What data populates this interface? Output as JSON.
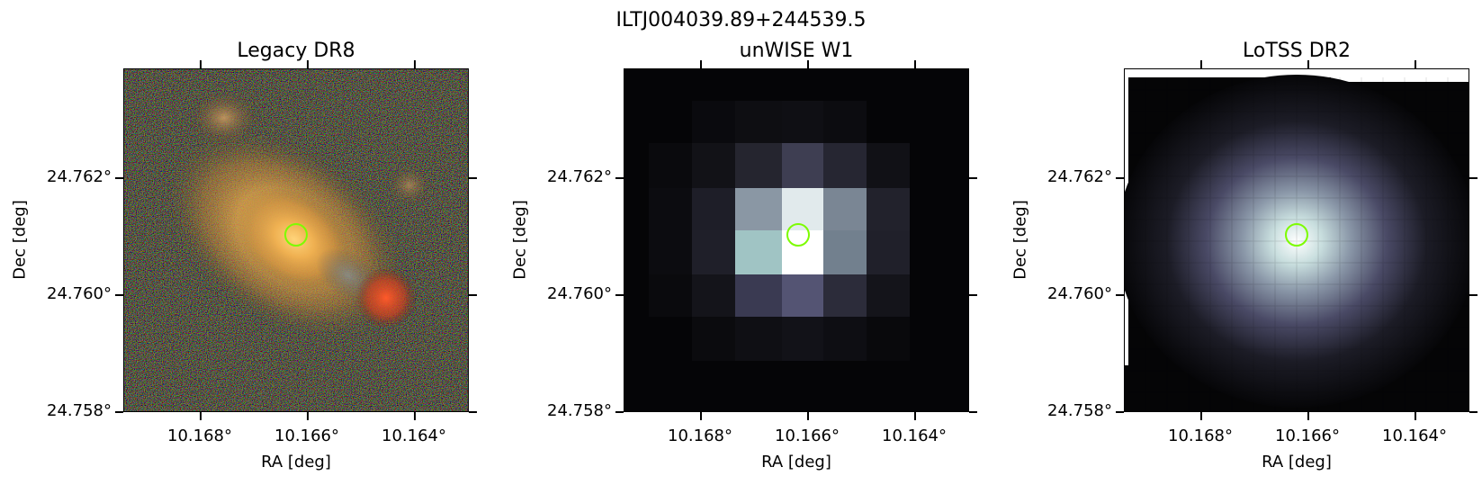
{
  "title": "ILTJ004039.89+244539.5",
  "colors": {
    "marker": "#7cfc00"
  },
  "panels": [
    {
      "title": "Legacy DR8",
      "xlabel": "RA [deg]",
      "ylabel": "Dec [deg]",
      "xticks": [
        "10.168°",
        "10.166°",
        "10.164°"
      ],
      "yticks": [
        "24.762°",
        "24.760°",
        "24.758°"
      ]
    },
    {
      "title": "unWISE W1",
      "xlabel": "RA [deg]",
      "ylabel": "Dec [deg]",
      "xticks": [
        "10.168°",
        "10.166°",
        "10.164°"
      ],
      "yticks": [
        "24.762°",
        "24.760°",
        "24.758°"
      ]
    },
    {
      "title": "LoTSS DR2",
      "xlabel": "RA [deg]",
      "ylabel": "Dec [deg]",
      "xticks": [
        "10.168°",
        "10.166°",
        "10.164°"
      ],
      "yticks": [
        "24.762°",
        "24.760°",
        "24.758°"
      ]
    }
  ]
}
